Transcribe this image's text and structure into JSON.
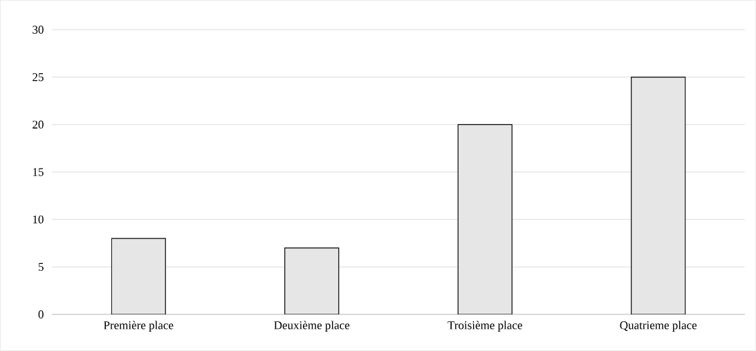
{
  "chart_data": {
    "type": "bar",
    "categories": [
      "Première place",
      "Deuxième place",
      "Troisième place",
      "Quatrieme place"
    ],
    "values": [
      8,
      7,
      20,
      25
    ],
    "color": "#e6e6e6",
    "ylim": [
      0,
      30
    ],
    "yticks": [
      0,
      5,
      10,
      15,
      20,
      25,
      30
    ],
    "grid": "y"
  }
}
